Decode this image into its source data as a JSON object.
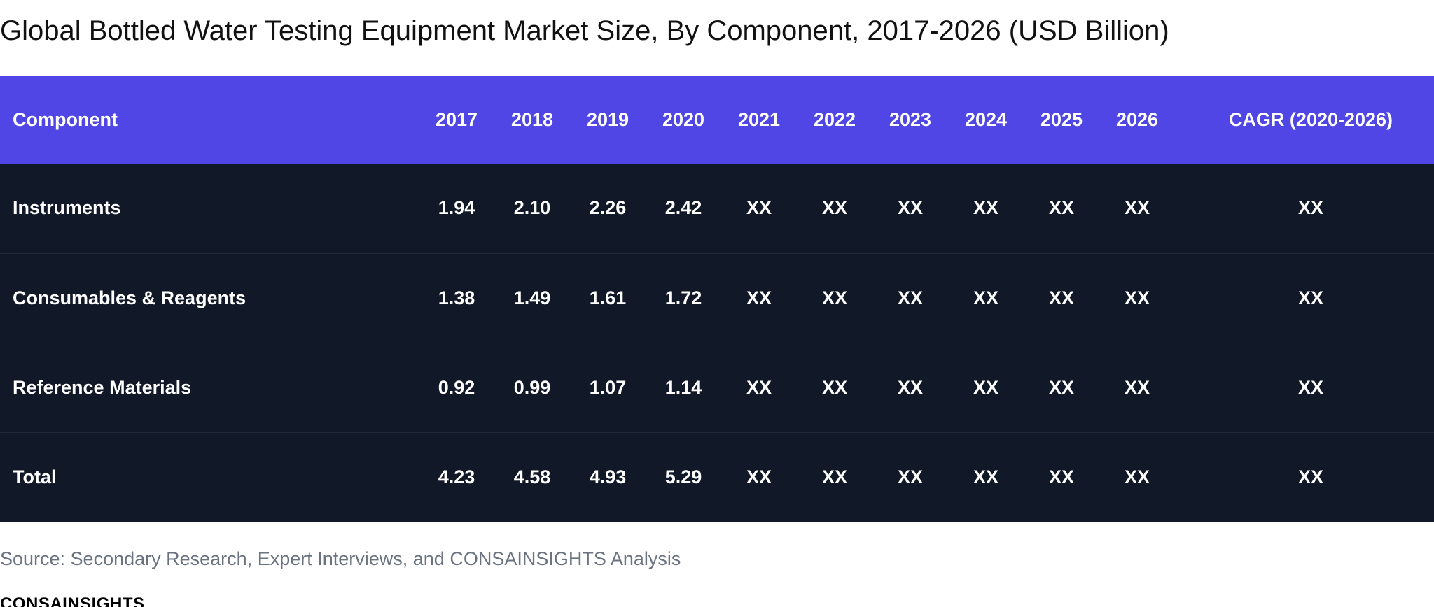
{
  "chart_data": {
    "type": "table",
    "title": "Global Bottled Water Testing Equipment Market Size, By Component, 2017-2026 (USD Billion)",
    "columns": [
      "Component",
      "2017",
      "2018",
      "2019",
      "2020",
      "2021",
      "2022",
      "2023",
      "2024",
      "2025",
      "2026",
      "CAGR (2020-2026)"
    ],
    "rows": [
      {
        "name": "Instruments",
        "values": [
          "1.94",
          "2.10",
          "2.26",
          "2.42",
          "XX",
          "XX",
          "XX",
          "XX",
          "XX",
          "XX",
          "XX"
        ]
      },
      {
        "name": "Consumables & Reagents",
        "values": [
          "1.38",
          "1.49",
          "1.61",
          "1.72",
          "XX",
          "XX",
          "XX",
          "XX",
          "XX",
          "XX",
          "XX"
        ]
      },
      {
        "name": "Reference Materials",
        "values": [
          "0.92",
          "0.99",
          "1.07",
          "1.14",
          "XX",
          "XX",
          "XX",
          "XX",
          "XX",
          "XX",
          "XX"
        ]
      },
      {
        "name": "Total",
        "values": [
          "4.23",
          "4.58",
          "4.93",
          "5.29",
          "XX",
          "XX",
          "XX",
          "XX",
          "XX",
          "XX",
          "XX"
        ]
      }
    ],
    "source": "Source: Secondary Research, Expert Interviews, and CONSAINSIGHTS Analysis",
    "brand": "CONSAINSIGHTS"
  },
  "colors": {
    "header_background": "#4f46e5",
    "body_background": "#111827",
    "source_text": "#6b7280"
  }
}
